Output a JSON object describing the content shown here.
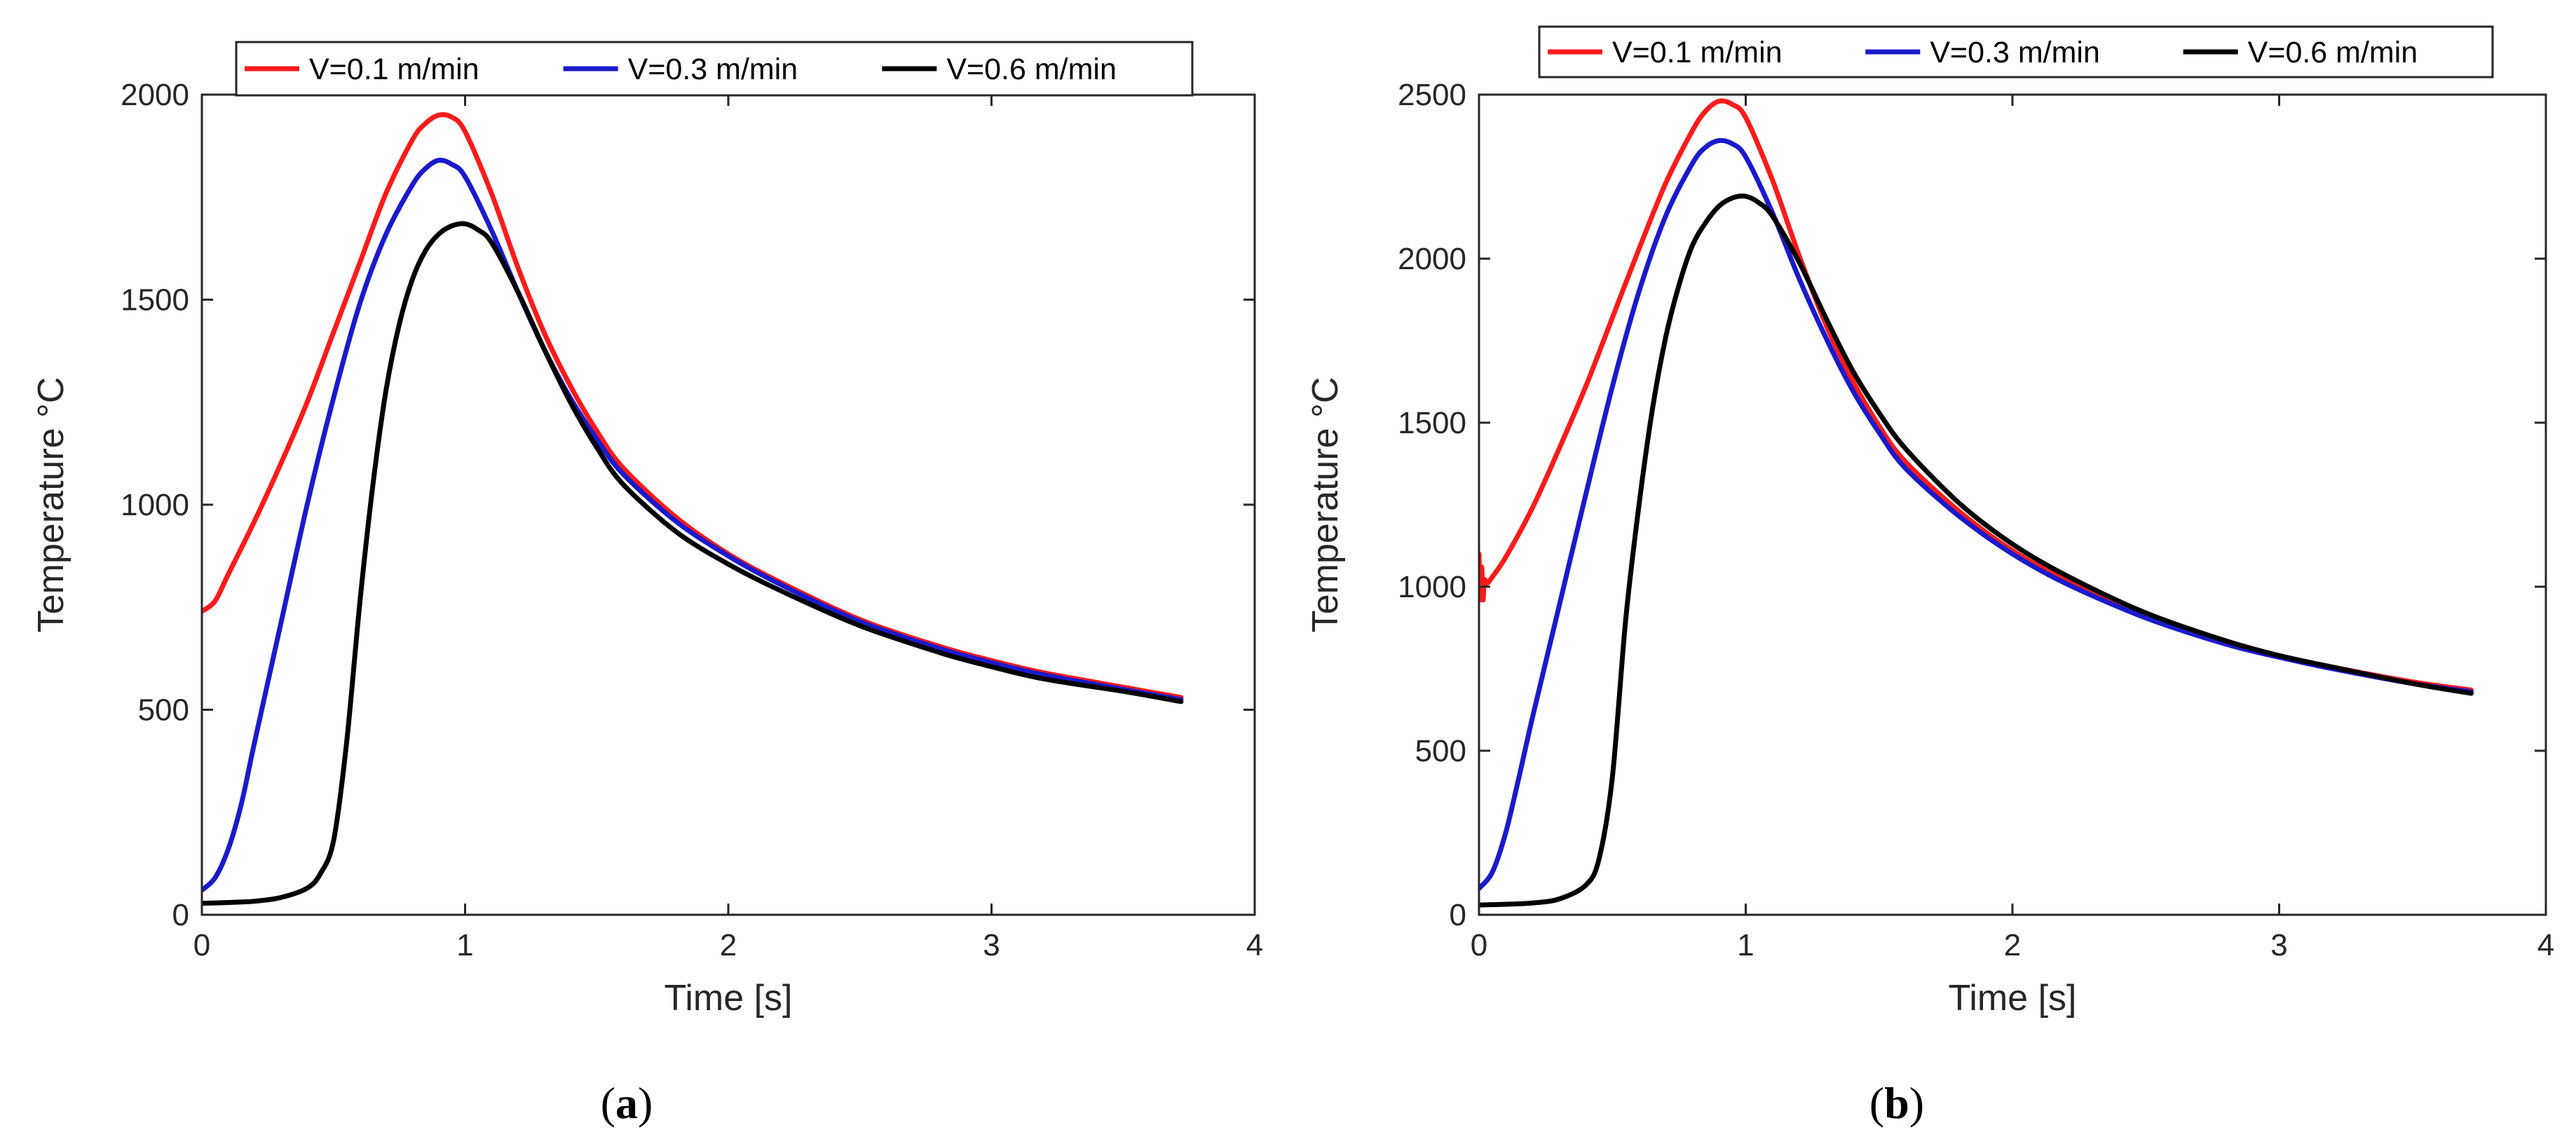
{
  "figure": {
    "description_labels": [
      "(a)",
      "(b)"
    ]
  },
  "chart_data": [
    {
      "type": "line",
      "caption": {
        "open": "(",
        "letter": "a",
        "close": ")"
      },
      "xlabel": "Time [s]",
      "ylabel": "Temperature °C",
      "xlim": [
        0,
        4
      ],
      "ylim": [
        0,
        2000
      ],
      "xticks": [
        0,
        1,
        2,
        3,
        4
      ],
      "yticks": [
        0,
        500,
        1000,
        1500,
        2000
      ],
      "grid": false,
      "legend_position": "top",
      "series": [
        {
          "name": "V=0.1 m/min",
          "color": "#ff1a1a",
          "x": [
            0,
            0.05,
            0.1,
            0.2,
            0.3,
            0.4,
            0.5,
            0.6,
            0.7,
            0.8,
            0.85,
            0.9,
            0.95,
            1.0,
            1.1,
            1.2,
            1.3,
            1.4,
            1.5,
            1.6,
            1.8,
            2.0,
            2.2,
            2.5,
            2.8,
            3.0,
            3.2,
            3.5,
            3.72
          ],
          "y": [
            740,
            765,
            830,
            960,
            1100,
            1250,
            1420,
            1590,
            1760,
            1890,
            1930,
            1950,
            1945,
            1910,
            1760,
            1580,
            1420,
            1290,
            1180,
            1090,
            970,
            880,
            810,
            720,
            655,
            620,
            590,
            555,
            530
          ]
        },
        {
          "name": "V=0.3 m/min",
          "color": "#1a1acc",
          "x": [
            0,
            0.05,
            0.1,
            0.15,
            0.2,
            0.3,
            0.4,
            0.5,
            0.6,
            0.7,
            0.8,
            0.85,
            0.9,
            0.95,
            1.0,
            1.1,
            1.2,
            1.3,
            1.4,
            1.5,
            1.6,
            1.8,
            2.0,
            2.2,
            2.5,
            2.8,
            3.0,
            3.2,
            3.5,
            3.72
          ],
          "y": [
            60,
            90,
            160,
            270,
            420,
            710,
            1000,
            1260,
            1490,
            1660,
            1780,
            1820,
            1840,
            1830,
            1800,
            1670,
            1520,
            1380,
            1260,
            1160,
            1075,
            960,
            875,
            805,
            715,
            650,
            615,
            585,
            550,
            525
          ]
        },
        {
          "name": "V=0.6 m/min",
          "color": "#000000",
          "x": [
            0,
            0.1,
            0.2,
            0.3,
            0.4,
            0.45,
            0.5,
            0.55,
            0.6,
            0.65,
            0.7,
            0.75,
            0.8,
            0.85,
            0.9,
            0.95,
            1.0,
            1.05,
            1.1,
            1.2,
            1.3,
            1.4,
            1.5,
            1.6,
            1.8,
            2.0,
            2.2,
            2.5,
            2.8,
            3.0,
            3.2,
            3.5,
            3.72
          ],
          "y": [
            28,
            30,
            33,
            42,
            65,
            100,
            180,
            420,
            760,
            1050,
            1280,
            1440,
            1550,
            1620,
            1660,
            1680,
            1685,
            1670,
            1640,
            1520,
            1380,
            1250,
            1140,
            1050,
            935,
            855,
            790,
            705,
            640,
            605,
            575,
            545,
            520
          ]
        }
      ]
    },
    {
      "type": "line",
      "caption": {
        "open": "(",
        "letter": "b",
        "close": ")"
      },
      "xlabel": "Time [s]",
      "ylabel": "Temperature °C",
      "xlim": [
        0,
        4
      ],
      "ylim": [
        0,
        2500
      ],
      "xticks": [
        0,
        1,
        2,
        3,
        4
      ],
      "yticks": [
        0,
        500,
        1000,
        1500,
        2000,
        2500
      ],
      "grid": false,
      "legend_position": "top",
      "series": [
        {
          "name": "V=0.1 m/min",
          "color": "#ff1a1a",
          "x": [
            0,
            0.005,
            0.01,
            0.015,
            0.02,
            0.03,
            0.05,
            0.1,
            0.2,
            0.3,
            0.4,
            0.5,
            0.6,
            0.7,
            0.8,
            0.85,
            0.9,
            0.95,
            1.0,
            1.1,
            1.2,
            1.3,
            1.4,
            1.5,
            1.6,
            1.8,
            2.0,
            2.2,
            2.5,
            2.8,
            3.0,
            3.2,
            3.5,
            3.72
          ],
          "y": [
            1100,
            960,
            1060,
            960,
            1020,
            1010,
            1030,
            1090,
            1240,
            1420,
            1610,
            1820,
            2030,
            2230,
            2390,
            2450,
            2480,
            2470,
            2430,
            2240,
            2010,
            1800,
            1630,
            1490,
            1380,
            1230,
            1110,
            1020,
            915,
            835,
            790,
            755,
            710,
            685
          ]
        },
        {
          "name": "V=0.3 m/min",
          "color": "#1a1acc",
          "x": [
            0,
            0.05,
            0.1,
            0.15,
            0.2,
            0.3,
            0.4,
            0.5,
            0.6,
            0.7,
            0.8,
            0.85,
            0.9,
            0.95,
            1.0,
            1.1,
            1.2,
            1.3,
            1.4,
            1.5,
            1.6,
            1.8,
            2.0,
            2.2,
            2.5,
            2.8,
            3.0,
            3.2,
            3.5,
            3.72
          ],
          "y": [
            80,
            130,
            250,
            420,
            600,
            940,
            1280,
            1610,
            1900,
            2130,
            2290,
            2340,
            2360,
            2350,
            2310,
            2140,
            1940,
            1760,
            1600,
            1470,
            1360,
            1215,
            1100,
            1010,
            905,
            825,
            785,
            750,
            705,
            680
          ]
        },
        {
          "name": "V=0.6 m/min",
          "color": "#000000",
          "x": [
            0,
            0.1,
            0.2,
            0.3,
            0.4,
            0.45,
            0.5,
            0.55,
            0.6,
            0.65,
            0.7,
            0.75,
            0.8,
            0.85,
            0.9,
            0.95,
            1.0,
            1.05,
            1.1,
            1.2,
            1.3,
            1.4,
            1.5,
            1.6,
            1.8,
            2.0,
            2.2,
            2.5,
            2.8,
            3.0,
            3.2,
            3.5,
            3.72
          ],
          "y": [
            30,
            32,
            36,
            48,
            90,
            170,
            420,
            900,
            1250,
            1540,
            1760,
            1920,
            2040,
            2110,
            2160,
            2185,
            2190,
            2170,
            2130,
            1990,
            1820,
            1660,
            1530,
            1420,
            1255,
            1130,
            1035,
            920,
            835,
            790,
            755,
            705,
            675
          ]
        }
      ]
    }
  ]
}
